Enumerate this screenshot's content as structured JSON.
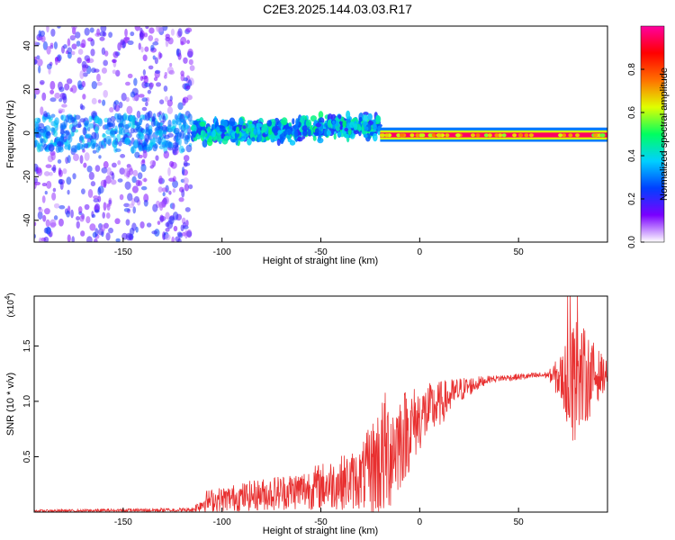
{
  "title": "C2E3.2025.144.03.03.R17",
  "chart_data": [
    {
      "type": "heatmap",
      "xlabel": "Height of straight line (km)",
      "ylabel": "Frequency (Hz)",
      "xlim": [
        -195,
        95
      ],
      "ylim": [
        -50,
        49
      ],
      "xticks": [
        -150,
        -100,
        -50,
        0,
        50
      ],
      "yticks": [
        -40,
        -20,
        0,
        20,
        40
      ],
      "colorbar": {
        "label": "Normalized spectral amplitude",
        "range": [
          0,
          1
        ],
        "ticks": [
          0.0,
          0.2,
          0.4,
          0.6,
          0.8
        ],
        "colors": [
          "#ffffff",
          "#7a00ff",
          "#0040ff",
          "#00d0ff",
          "#00ff60",
          "#e0ff00",
          "#ff7000",
          "#ff0000",
          "#ff00a0"
        ]
      },
      "regions": [
        {
          "x_range": [
            -195,
            -115
          ],
          "freq_spread": [
            -50,
            49
          ],
          "amplitude": [
            0.05,
            0.25
          ],
          "description": "scattered noise"
        },
        {
          "x_range": [
            -115,
            -20
          ],
          "freq_spread": [
            -6,
            8
          ],
          "amplitude": [
            0.2,
            0.5
          ]
        },
        {
          "x_range": [
            -20,
            95
          ],
          "freq_spread": [
            -3,
            2
          ],
          "center_freq": -1,
          "amplitude": [
            0.6,
            1.0
          ]
        }
      ]
    },
    {
      "type": "line",
      "xlabel": "Height of straight line (km)",
      "ylabel": "SNR (10 * v/v)",
      "scale_note": "(x10",
      "scale_exp": "4",
      "xlim": [
        -195,
        95
      ],
      "ylim": [
        0,
        1.95
      ],
      "xticks": [
        -150,
        -100,
        -50,
        0,
        50
      ],
      "yticks": [
        0.5,
        1.0,
        1.5
      ],
      "ytick_labels": [
        "0.5",
        "1.0",
        "1.5"
      ],
      "color": "#e83030",
      "envelope": [
        {
          "x": -195,
          "mean": 0.01,
          "amp": 0.01
        },
        {
          "x": -115,
          "mean": 0.02,
          "amp": 0.02
        },
        {
          "x": -108,
          "mean": 0.1,
          "amp": 0.1
        },
        {
          "x": -60,
          "mean": 0.2,
          "amp": 0.18
        },
        {
          "x": -30,
          "mean": 0.3,
          "amp": 0.28
        },
        {
          "x": -18,
          "mean": 0.5,
          "amp": 0.6
        },
        {
          "x": 0,
          "mean": 0.85,
          "amp": 0.3
        },
        {
          "x": 20,
          "mean": 1.1,
          "amp": 0.12
        },
        {
          "x": 35,
          "mean": 1.2,
          "amp": 0.03
        },
        {
          "x": 65,
          "mean": 1.24,
          "amp": 0.03
        },
        {
          "x": 72,
          "mean": 1.2,
          "amp": 0.25
        },
        {
          "x": 78,
          "mean": 1.2,
          "amp": 0.6
        },
        {
          "x": 95,
          "mean": 1.25,
          "amp": 0.1
        }
      ]
    }
  ]
}
